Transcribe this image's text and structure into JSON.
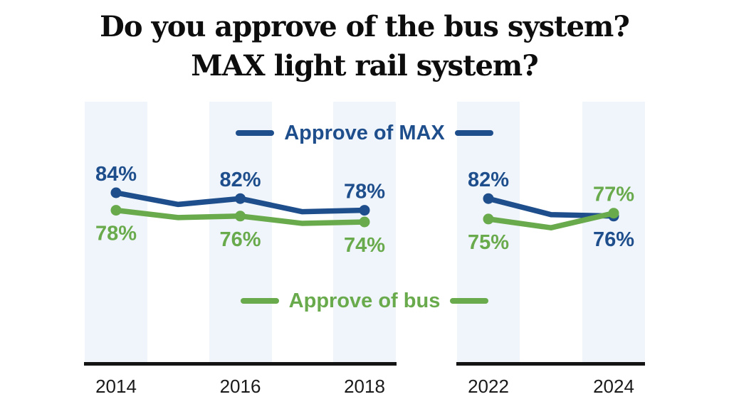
{
  "chart_data": {
    "type": "line",
    "title": "Do you approve of the bus system? MAX light rail system?",
    "title_lines": [
      "Do you approve of the bus system?",
      "MAX light rail system?"
    ],
    "y_unit": "%",
    "x_ticks": [
      2014,
      2016,
      2018,
      2022,
      2024
    ],
    "highlighted_band_years": [
      2014,
      2016,
      2018,
      2022,
      2024
    ],
    "panel_break_between": [
      2018,
      2022
    ],
    "series": [
      {
        "name": "Approve of MAX",
        "color": "#1f4e8c",
        "points": [
          {
            "year": 2014,
            "value": 84,
            "label": "84%",
            "label_pos": "above"
          },
          {
            "year": 2015,
            "value": 80,
            "label": null,
            "label_pos": null
          },
          {
            "year": 2016,
            "value": 82,
            "label": "82%",
            "label_pos": "above"
          },
          {
            "year": 2017,
            "value": 77.5,
            "label": null,
            "label_pos": null
          },
          {
            "year": 2018,
            "value": 78,
            "label": "78%",
            "label_pos": "above"
          },
          {
            "year": 2022,
            "value": 82,
            "label": "82%",
            "label_pos": "above"
          },
          {
            "year": 2023,
            "value": 76.5,
            "label": null,
            "label_pos": null
          },
          {
            "year": 2024,
            "value": 76,
            "label": "76%",
            "label_pos": "below"
          }
        ]
      },
      {
        "name": "Approve of bus",
        "color": "#69aa4c",
        "points": [
          {
            "year": 2014,
            "value": 78,
            "label": "78%",
            "label_pos": "below"
          },
          {
            "year": 2015,
            "value": 75.5,
            "label": null,
            "label_pos": null
          },
          {
            "year": 2016,
            "value": 76,
            "label": "76%",
            "label_pos": "below"
          },
          {
            "year": 2017,
            "value": 73.5,
            "label": null,
            "label_pos": null
          },
          {
            "year": 2018,
            "value": 74,
            "label": "74%",
            "label_pos": "below"
          },
          {
            "year": 2022,
            "value": 75,
            "label": "75%",
            "label_pos": "below"
          },
          {
            "year": 2023,
            "value": 72,
            "label": null,
            "label_pos": null
          },
          {
            "year": 2024,
            "value": 77,
            "label": "77%",
            "label_pos": "above"
          }
        ]
      }
    ],
    "legend": [
      {
        "label": "Approve of MAX",
        "color": "#1f4e8c",
        "position": "top-center"
      },
      {
        "label": "Approve of bus",
        "color": "#69aa4c",
        "position": "bottom-center"
      }
    ],
    "colors": {
      "max_line": "#1f4e8c",
      "bus_line": "#69aa4c",
      "band": "#eff5fa",
      "axis": "#141414",
      "tick_text": "#1a1a1a",
      "title_text": "#0d0d0d",
      "background": "#ffffff"
    },
    "notes": "Unlabeled in-between vertices (2015, 2017, 2023) are estimated from line positions; grid off; x-axis split into two panels (2014-2018 and 2022-2024)."
  }
}
